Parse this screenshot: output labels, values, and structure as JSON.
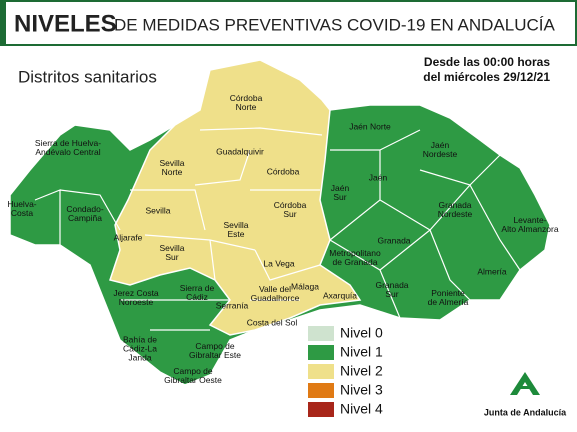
{
  "header": {
    "title_bold": "NIVELES",
    "title_rest": "DE MEDIDAS PREVENTIVAS COVID-19 EN ANDALUCÍA"
  },
  "subtitle": "Distritos sanitarios",
  "date_note": [
    "Desde las 00:00 horas",
    "del miércoles 29/12/21"
  ],
  "districts": [
    {
      "lines": [
        "Córdoba",
        "Norte"
      ]
    },
    {
      "lines": [
        "Guadalquivir"
      ]
    },
    {
      "lines": [
        "Sevilla",
        "Norte"
      ]
    },
    {
      "lines": [
        "Córdoba"
      ]
    },
    {
      "lines": [
        "Sevilla"
      ]
    },
    {
      "lines": [
        "Córdoba",
        "Sur"
      ]
    },
    {
      "lines": [
        "Sevilla",
        "Este"
      ]
    },
    {
      "lines": [
        "Aljarafe"
      ]
    },
    {
      "lines": [
        "Sevilla",
        "Sur"
      ]
    },
    {
      "lines": [
        "La Vega"
      ]
    },
    {
      "lines": [
        "Sierra de",
        "Cádiz"
      ]
    },
    {
      "lines": [
        "Jerez Costa",
        "Noroeste"
      ]
    },
    {
      "lines": [
        "Serranía"
      ]
    },
    {
      "lines": [
        "Valle del",
        "Guadalhorce"
      ]
    },
    {
      "lines": [
        "Málaga"
      ]
    },
    {
      "lines": [
        "Axarquía"
      ]
    },
    {
      "lines": [
        "Costa del Sol"
      ]
    },
    {
      "lines": [
        "Bahía de",
        "Cádiz-La",
        "Janda"
      ]
    },
    {
      "lines": [
        "Campo de",
        "Gibraltar Este"
      ]
    },
    {
      "lines": [
        "Campo de",
        "Gibraltar Oeste"
      ]
    },
    {
      "lines": [
        "Sierra de Huelva-",
        "Andévalo Central"
      ]
    },
    {
      "lines": [
        "Huelva-",
        "Costa"
      ]
    },
    {
      "lines": [
        "Condado-",
        "Campiña"
      ]
    },
    {
      "lines": [
        "Jaén Norte"
      ]
    },
    {
      "lines": [
        "Jaén",
        "Nordeste"
      ]
    },
    {
      "lines": [
        "Jaén"
      ]
    },
    {
      "lines": [
        "Jaén",
        "Sur"
      ]
    },
    {
      "lines": [
        "Granada",
        "Nordeste"
      ]
    },
    {
      "lines": [
        "Levante-",
        "Alto Almanzora"
      ]
    },
    {
      "lines": [
        "Granada"
      ]
    },
    {
      "lines": [
        "Metropolitano",
        "de Granada"
      ]
    },
    {
      "lines": [
        "Almería"
      ]
    },
    {
      "lines": [
        "Granada",
        "Sur"
      ]
    },
    {
      "lines": [
        "Poniente",
        "de Almería"
      ]
    }
  ],
  "legend": [
    {
      "name": "Nivel 0",
      "color": "#cfe3cf"
    },
    {
      "name": "Nivel 1",
      "color": "#2e9a44"
    },
    {
      "name": "Nivel 2",
      "color": "#efe08a"
    },
    {
      "name": "Nivel 3",
      "color": "#e07a14"
    },
    {
      "name": "Nivel 4",
      "color": "#a8261a"
    }
  ],
  "logo_text": "Junta de Andalucía"
}
